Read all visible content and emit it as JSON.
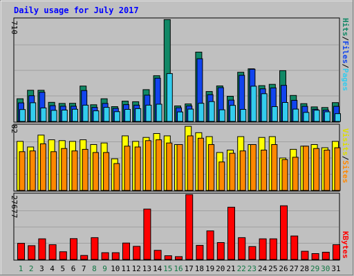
{
  "title": "Daily usage for July 2017",
  "colors": {
    "background": "#c0c0c0",
    "plot_background": "#c0c0c0",
    "grid": "#a0a0a0",
    "title": "#0000ff",
    "hits": "#118866",
    "files": "#1144ee",
    "pages": "#33ccee",
    "visits": "#ffff00",
    "sites": "#ff8800",
    "kbytes": "#ff0000",
    "day_weekday": "#000000",
    "day_weekend": "#117744"
  },
  "chart_data": [
    {
      "type": "bar",
      "name": "hits-files-pages",
      "ymax_label": "710",
      "ylim": [
        0,
        710
      ],
      "grid": true,
      "categories": [
        "1",
        "2",
        "3",
        "4",
        "5",
        "6",
        "7",
        "8",
        "9",
        "10",
        "11",
        "12",
        "13",
        "14",
        "15",
        "16",
        "17",
        "18",
        "19",
        "20",
        "21",
        "22",
        "23",
        "24",
        "25",
        "26",
        "27",
        "28",
        "29",
        "30",
        "31"
      ],
      "legend": {
        "hits": "Hits",
        "files": "Files",
        "pages": "Pages",
        "sep": "/"
      },
      "series": [
        {
          "name": "Hits",
          "values": [
            158,
            217,
            217,
            133,
            125,
            126,
            246,
            116,
            158,
            103,
            141,
            137,
            221,
            318,
            708,
            108,
            122,
            482,
            208,
            247,
            175,
            342,
            366,
            249,
            258,
            353,
            181,
            124,
            101,
            97,
            131
          ]
        },
        {
          "name": "Files",
          "values": [
            129,
            179,
            203,
            110,
            106,
            106,
            215,
            98,
            125,
            91,
            117,
            113,
            183,
            301,
            0,
            95,
            108,
            436,
            186,
            235,
            148,
            321,
            363,
            227,
            233,
            251,
            147,
            105,
            85,
            79,
            105
          ]
        },
        {
          "name": "Pages",
          "values": [
            83,
            130,
            94,
            77,
            79,
            85,
            113,
            74,
            98,
            68,
            84,
            89,
            113,
            120,
            333,
            66,
            86,
            126,
            138,
            81,
            112,
            84,
            245,
            193,
            103,
            132,
            86,
            63,
            78,
            67,
            54
          ]
        }
      ]
    },
    {
      "type": "bar",
      "name": "visits-sites",
      "ymax_label": "82",
      "ylim": [
        0,
        82
      ],
      "grid": true,
      "categories": [
        "1",
        "2",
        "3",
        "4",
        "5",
        "6",
        "7",
        "8",
        "9",
        "10",
        "11",
        "12",
        "13",
        "14",
        "15",
        "16",
        "17",
        "18",
        "19",
        "20",
        "21",
        "22",
        "23",
        "24",
        "25",
        "26",
        "27",
        "28",
        "29",
        "30",
        "31"
      ],
      "legend": {
        "visits": "Visits",
        "sites": "Sites",
        "sep": "/"
      },
      "series": [
        {
          "name": "Visits",
          "values": [
            62,
            55,
            70,
            64,
            63,
            62,
            64,
            58,
            60,
            40,
            69,
            62,
            67,
            72,
            69,
            58,
            81,
            73,
            68,
            48,
            51,
            68,
            58,
            67,
            68,
            41,
            52,
            56,
            58,
            54,
            62
          ]
        },
        {
          "name": "Sites",
          "values": [
            49,
            50,
            59,
            49,
            53,
            50,
            52,
            48,
            48,
            34,
            56,
            55,
            63,
            64,
            60,
            58,
            69,
            66,
            58,
            36,
            47,
            50,
            58,
            51,
            58,
            39,
            42,
            56,
            53,
            51,
            54
          ]
        }
      ]
    },
    {
      "type": "bar",
      "name": "kbytes",
      "ymax_label": "27677",
      "ylim": [
        0,
        27677
      ],
      "grid": true,
      "categories": [
        "1",
        "2",
        "3",
        "4",
        "5",
        "6",
        "7",
        "8",
        "9",
        "10",
        "11",
        "12",
        "13",
        "14",
        "15",
        "16",
        "17",
        "18",
        "19",
        "20",
        "21",
        "22",
        "23",
        "24",
        "25",
        "26",
        "27",
        "28",
        "29",
        "30",
        "31"
      ],
      "legend": {
        "kbytes": "KBytes"
      },
      "series": [
        {
          "name": "KBytes",
          "values": [
            6900,
            5900,
            8800,
            6300,
            3300,
            8900,
            1700,
            9300,
            2900,
            2900,
            7000,
            5600,
            21500,
            3900,
            1600,
            1200,
            27677,
            6000,
            12200,
            7200,
            22300,
            9300,
            5500,
            8800,
            8800,
            22900,
            10000,
            3500,
            2500,
            3100,
            6300
          ]
        }
      ]
    }
  ]
}
